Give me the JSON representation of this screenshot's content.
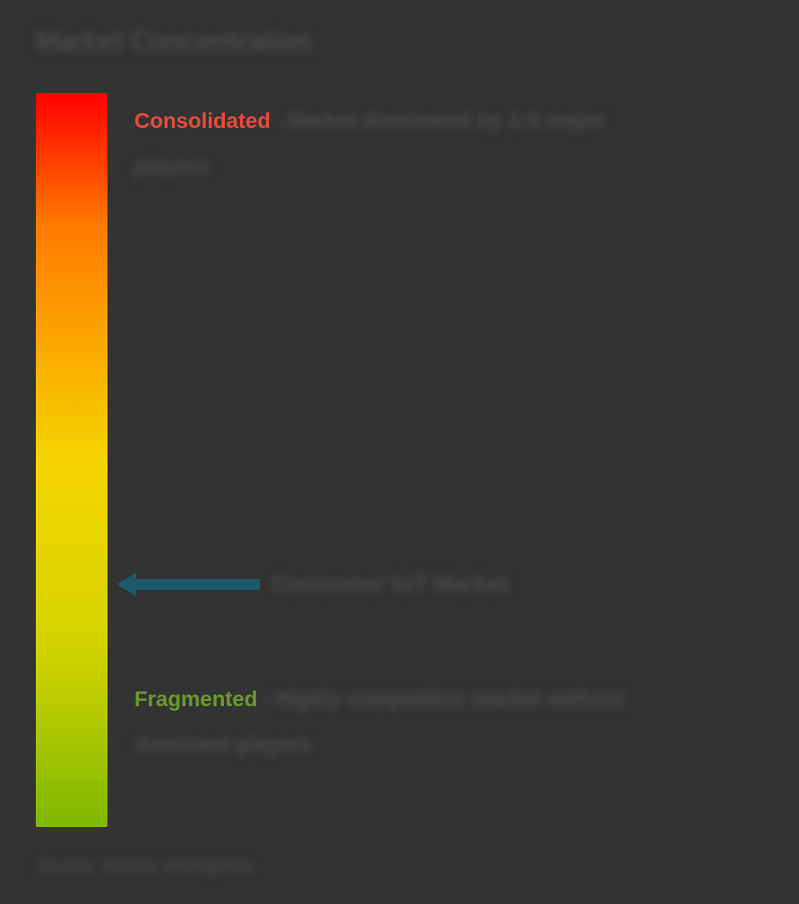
{
  "title": "Market Concentration",
  "gradient": {
    "top_color": "#ff0000",
    "mid_top_color": "#ff7a00",
    "mid_color": "#f5d400",
    "mid_bottom_color": "#d4d400",
    "bottom_color": "#7fb800"
  },
  "consolidated": {
    "label": "Consolidated",
    "color": "#e74c3c",
    "description_prefix": "- Market dominated by 1-5 major",
    "description_line2": "players"
  },
  "marker": {
    "label": "Consumer IoT Market",
    "position_pct": 65,
    "arrow_color": "#1a5a6a",
    "arrow_width": 160,
    "arrow_height": 26
  },
  "fragmented": {
    "label": "Fragmented",
    "color": "#6a9a2d",
    "description_prefix": " - Highly competitive market without",
    "description_line2": "dominant players",
    "position_pct": 80
  },
  "source": "Source: Mordor Intelligence",
  "background_color": "#333333",
  "text_color_blur": "#4a4a4a"
}
